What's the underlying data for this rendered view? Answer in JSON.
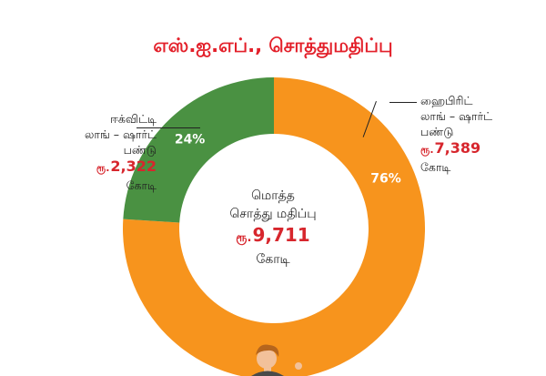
{
  "chart_data": {
    "type": "pie",
    "title": "எஸ்.ஐ.எப்., சொத்துமதிப்பு",
    "donut": true,
    "slices": [
      {
        "name_lines": [
          "ஹைபிரிட்",
          "லாங் – ஷார்ட்",
          "பண்டு"
        ],
        "currency": "ரூ.",
        "amount": "7,389",
        "unit": "கோடி",
        "value": 7389,
        "percent": 76,
        "percent_label": "76%",
        "color": "#f7941d"
      },
      {
        "name_lines": [
          "ஈக்விட்டி",
          "லாங் – ஷார்ட்",
          "பண்டு"
        ],
        "currency": "ரூ.",
        "amount": "2,322",
        "unit": "கோடி",
        "value": 2322,
        "percent": 24,
        "percent_label": "24%",
        "color": "#4a9142"
      }
    ],
    "center": {
      "lines": [
        "மொத்த",
        "சொத்து மதிப்பு"
      ],
      "currency": "ரூ.",
      "amount": "9,711",
      "unit": "கோடி"
    }
  }
}
